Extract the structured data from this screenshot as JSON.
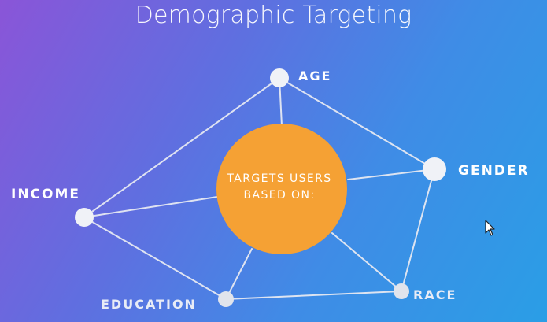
{
  "title": "Demographic Targeting",
  "center": {
    "line1": "TARGETS USERS",
    "line2": "BASED ON:",
    "color": "#f5a134"
  },
  "nodes": [
    {
      "id": "age",
      "label": "AGE"
    },
    {
      "id": "gender",
      "label": "GENDER"
    },
    {
      "id": "race",
      "label": "RACE"
    },
    {
      "id": "education",
      "label": "EDUCATION"
    },
    {
      "id": "income",
      "label": "INCOME"
    }
  ],
  "colors": {
    "line": "#e6e9f2",
    "node": "#f0f2f7"
  },
  "icons": {
    "cursor": "mouse-pointer-icon"
  }
}
